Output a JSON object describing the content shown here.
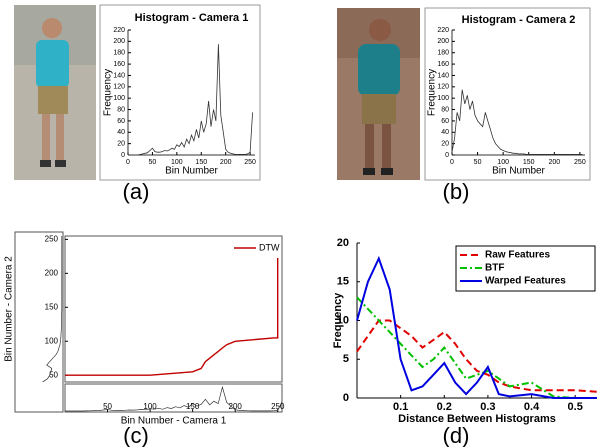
{
  "chart_data": [
    {
      "type": "line",
      "title": "Histogram - Camera 1",
      "xlabel": "Bin Number",
      "ylabel": "Frequency",
      "x": [
        0,
        5,
        10,
        15,
        20,
        25,
        30,
        35,
        40,
        45,
        50,
        55,
        60,
        65,
        70,
        75,
        80,
        85,
        90,
        95,
        100,
        105,
        110,
        115,
        120,
        125,
        130,
        135,
        140,
        145,
        150,
        155,
        160,
        165,
        170,
        175,
        180,
        185,
        190,
        195,
        200,
        205,
        210,
        215,
        220,
        225,
        230,
        235,
        240,
        245,
        250,
        255
      ],
      "series": [
        {
          "color": "#333333",
          "linestyle": "solid",
          "values": [
            0,
            0,
            0,
            0,
            0,
            1,
            2,
            3,
            4,
            8,
            12,
            6,
            5,
            5,
            6,
            8,
            7,
            9,
            12,
            10,
            18,
            15,
            22,
            14,
            28,
            20,
            35,
            25,
            45,
            30,
            60,
            40,
            55,
            95,
            50,
            80,
            60,
            195,
            70,
            40,
            10,
            5,
            3,
            2,
            1,
            1,
            1,
            1,
            1,
            2,
            5,
            75
          ]
        }
      ],
      "xlim": [
        0,
        260
      ],
      "xticks": [
        0,
        50,
        100,
        150,
        200,
        250
      ],
      "ylim": [
        0,
        220
      ],
      "yticks": [
        0,
        20,
        40,
        60,
        80,
        100,
        120,
        140,
        160,
        180,
        200,
        220
      ]
    },
    {
      "type": "line",
      "title": "Histogram - Camera 2",
      "xlabel": "Bin Number",
      "ylabel": "Frequency",
      "x": [
        0,
        5,
        10,
        15,
        20,
        25,
        30,
        35,
        40,
        45,
        50,
        55,
        60,
        65,
        70,
        75,
        80,
        85,
        90,
        95,
        100,
        105,
        110,
        115,
        120,
        125,
        130,
        135,
        140,
        145,
        150,
        155,
        160,
        165,
        170,
        175,
        180,
        185,
        190,
        195,
        200,
        205,
        210,
        215,
        220,
        225,
        230,
        235,
        240,
        245,
        250,
        255
      ],
      "series": [
        {
          "color": "#333333",
          "linestyle": "solid",
          "values": [
            5,
            30,
            75,
            60,
            115,
            90,
            105,
            80,
            95,
            70,
            60,
            55,
            50,
            75,
            60,
            45,
            30,
            20,
            15,
            10,
            8,
            6,
            5,
            4,
            3,
            3,
            2,
            2,
            2,
            1,
            1,
            1,
            1,
            1,
            1,
            1,
            1,
            1,
            1,
            1,
            1,
            1,
            1,
            1,
            1,
            1,
            1,
            1,
            1,
            1,
            1,
            1
          ]
        }
      ],
      "xlim": [
        0,
        260
      ],
      "xticks": [
        0,
        50,
        100,
        150,
        200,
        250
      ],
      "ylim": [
        0,
        220
      ],
      "yticks": [
        0,
        20,
        40,
        60,
        80,
        100,
        120,
        140,
        160,
        180,
        200,
        220
      ]
    },
    {
      "type": "line",
      "xlabel": "Bin Number - Camera 1",
      "ylabel": "Bin Number - Camera 2",
      "x": [
        0,
        100,
        150,
        160,
        165,
        170,
        175,
        180,
        185,
        190,
        200,
        245,
        250,
        250
      ],
      "series": [
        {
          "name": "DTW",
          "color": "#c00000",
          "linestyle": "solid",
          "values": [
            50,
            50,
            55,
            60,
            70,
            75,
            80,
            85,
            90,
            95,
            100,
            105,
            105,
            250
          ]
        }
      ],
      "xlim": [
        0,
        255
      ],
      "xticks": [
        50,
        100,
        150,
        200,
        250
      ],
      "ylim": [
        40,
        255
      ],
      "yticks": [
        50,
        100,
        150,
        200,
        250
      ],
      "legend": "upper right"
    },
    {
      "type": "line",
      "xlabel": "Distance Between Histograms",
      "ylabel": "Frequency",
      "x": [
        0,
        0.025,
        0.05,
        0.075,
        0.1,
        0.125,
        0.15,
        0.175,
        0.2,
        0.225,
        0.25,
        0.275,
        0.3,
        0.325,
        0.35,
        0.4,
        0.45,
        0.5,
        0.55
      ],
      "series": [
        {
          "name": "Raw Features",
          "color": "#e00000",
          "linestyle": "dashed",
          "values": [
            6,
            8,
            10,
            10,
            9,
            8,
            6.5,
            7.5,
            8.5,
            7,
            5,
            3.5,
            3,
            2,
            1.5,
            1,
            1,
            1,
            0.8
          ]
        },
        {
          "name": "BTF",
          "color": "#00c000",
          "linestyle": "dashdot",
          "values": [
            13,
            11.5,
            10,
            8.5,
            7,
            5.5,
            4,
            5,
            6.5,
            4.5,
            2.5,
            3,
            3.5,
            2.5,
            1.5,
            2,
            0.2,
            0,
            0
          ]
        },
        {
          "name": "Warped Features",
          "color": "#0000e0",
          "linestyle": "solid",
          "values": [
            10,
            15,
            18,
            14,
            5,
            1,
            1.5,
            3,
            4.5,
            2,
            0.5,
            2,
            4,
            0.5,
            0.2,
            0.5,
            0,
            0,
            0
          ]
        }
      ],
      "xlim": [
        0,
        0.55
      ],
      "xticks": [
        0.1,
        0.2,
        0.3,
        0.4,
        0.5
      ],
      "ylim": [
        0,
        20
      ],
      "yticks": [
        0,
        5,
        10,
        15,
        20
      ],
      "legend": "upper right"
    }
  ],
  "captions": [
    "(a)",
    "(b)",
    "(c)",
    "(d)"
  ]
}
